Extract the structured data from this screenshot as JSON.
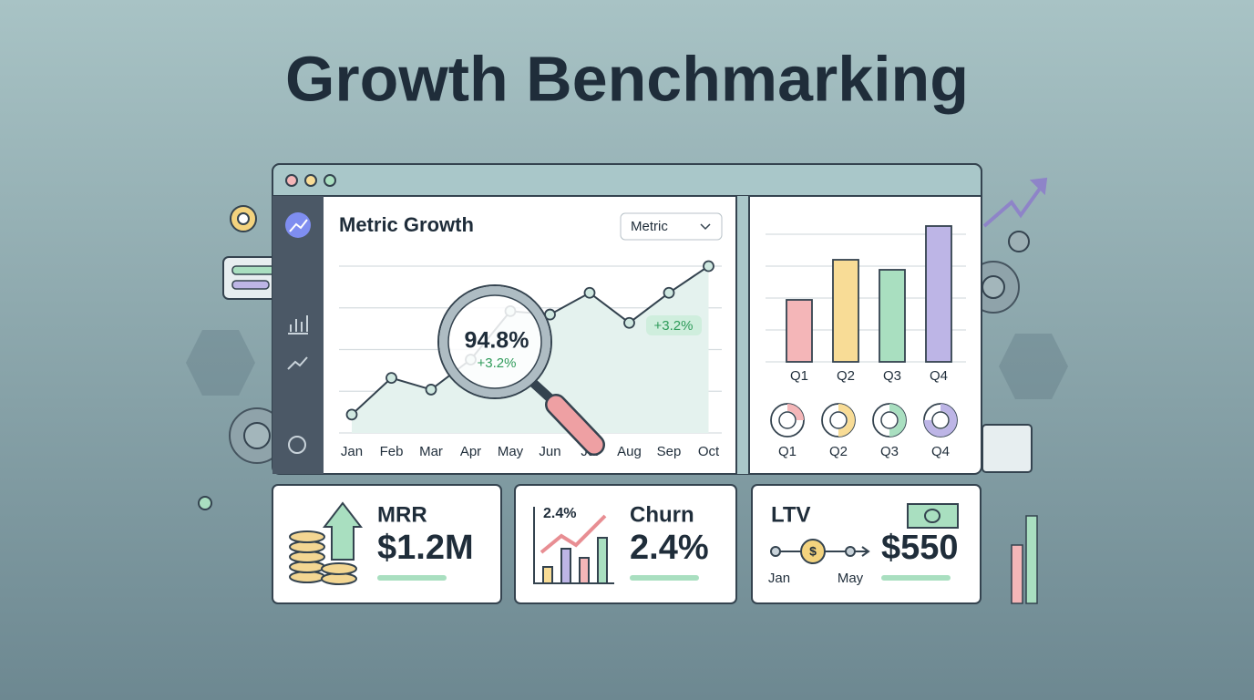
{
  "header": {
    "title": "Growth Benchmarking"
  },
  "line_chart": {
    "type": "line",
    "title": "Metric Growth",
    "dropdown": "Metric",
    "categories": [
      "Jan",
      "Feb",
      "Mar",
      "Apr",
      "May",
      "Jun",
      "Jul",
      "Aug",
      "Sep",
      "Oct"
    ],
    "values": [
      11,
      33,
      26,
      44,
      73,
      71,
      84,
      66,
      84,
      100
    ],
    "color": "#34434f",
    "ylim": [
      0,
      100
    ],
    "yticks": [
      0,
      25,
      50,
      75,
      100
    ],
    "grid": true,
    "highlight": {
      "value": "94.8%",
      "change": "+3.2%"
    },
    "badge": "+3.2%"
  },
  "bar_chart": {
    "type": "bar",
    "categories": [
      "Q1",
      "Q2",
      "Q3",
      "Q4"
    ],
    "values": [
      68,
      112,
      101,
      149
    ],
    "colors": [
      "#f4b6b8",
      "#f8dc96",
      "#a9dfc0",
      "#bdb5e6"
    ],
    "ylim": [
      0,
      150
    ],
    "yticks": [
      0,
      35,
      70,
      105,
      140
    ],
    "grid": true
  },
  "donut_chart": {
    "type": "pie",
    "categories": [
      "Q1",
      "Q2",
      "Q3",
      "Q4"
    ],
    "values": [
      25,
      50,
      50,
      75
    ],
    "colors": [
      "#f4b6b8",
      "#f8dc96",
      "#a9dfc0",
      "#bdb5e6"
    ]
  },
  "kpis": [
    {
      "label": "MRR",
      "value": "$1.2M"
    },
    {
      "label": "Churn",
      "value": "2.4%",
      "chart_label": "2.4%"
    },
    {
      "label": "LTV",
      "value": "$550",
      "timeline": [
        "Jan",
        "May"
      ]
    }
  ]
}
